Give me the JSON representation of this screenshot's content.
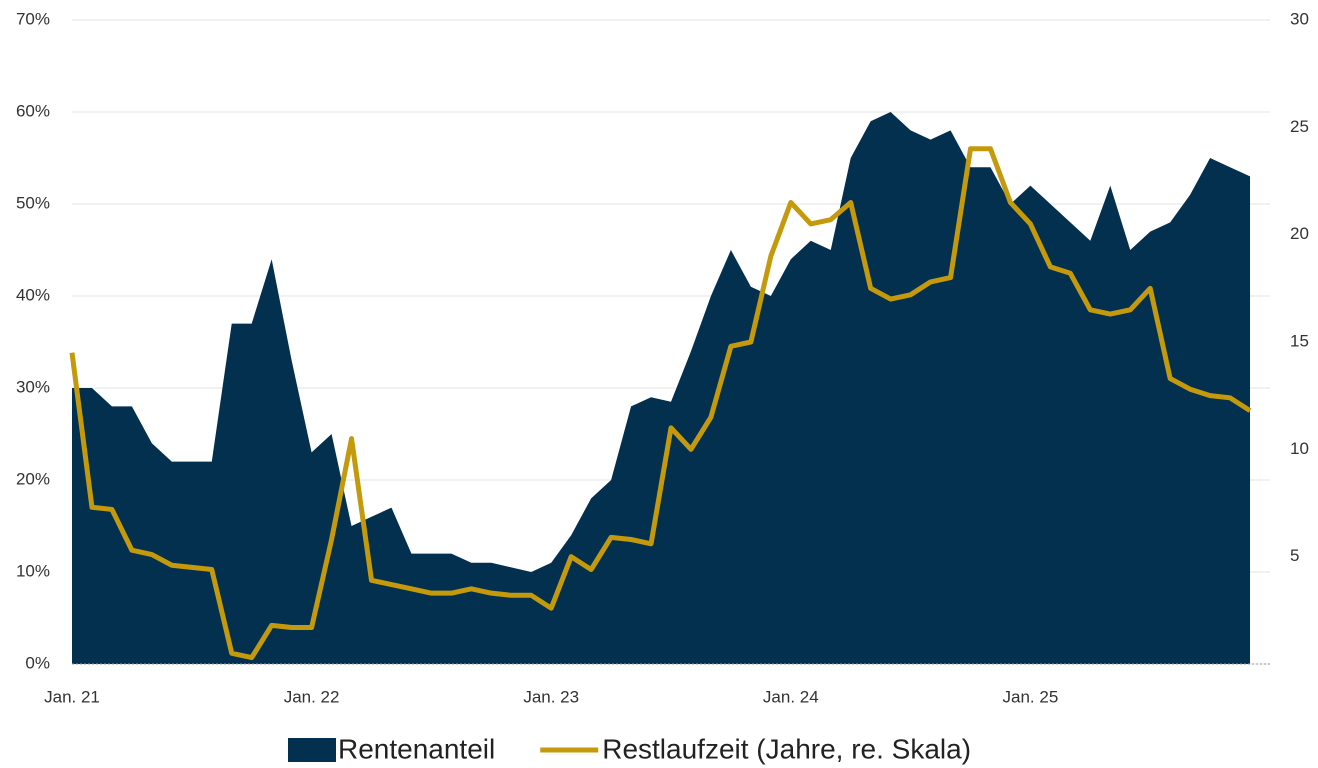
{
  "chart_data": {
    "type": "combo",
    "x": [
      "2021-01",
      "2021-02",
      "2021-03",
      "2021-04",
      "2021-05",
      "2021-06",
      "2021-07",
      "2021-08",
      "2021-09",
      "2021-10",
      "2021-11",
      "2021-12",
      "2022-01",
      "2022-02",
      "2022-03",
      "2022-04",
      "2022-05",
      "2022-06",
      "2022-07",
      "2022-08",
      "2022-09",
      "2022-10",
      "2022-11",
      "2022-12",
      "2023-01",
      "2023-02",
      "2023-03",
      "2023-04",
      "2023-05",
      "2023-06",
      "2023-07",
      "2023-08",
      "2023-09",
      "2023-10",
      "2023-11",
      "2023-12",
      "2024-01",
      "2024-02",
      "2024-03",
      "2024-04",
      "2024-05",
      "2024-06",
      "2024-07",
      "2024-08",
      "2024-09",
      "2024-10",
      "2024-11",
      "2024-12",
      "2025-01",
      "2025-02",
      "2025-03",
      "2025-04",
      "2025-05",
      "2025-06",
      "2025-07",
      "2025-08",
      "2025-09",
      "2025-10",
      "2025-11",
      "2025-12"
    ],
    "series": [
      {
        "name": "Rentenanteil",
        "type": "area",
        "color": "#03304f",
        "values": [
          30,
          30,
          28,
          28,
          24,
          22,
          22,
          22,
          37,
          37,
          44,
          33,
          23,
          25,
          15,
          16,
          17,
          12,
          12,
          12,
          11,
          11,
          10.5,
          10,
          11,
          14,
          18,
          20,
          28,
          29,
          28.5,
          34,
          40,
          45,
          41,
          40,
          44,
          46,
          45,
          55,
          59,
          60,
          58,
          57,
          58,
          54,
          54,
          50,
          52,
          50,
          48,
          46,
          52,
          45,
          47,
          48,
          51,
          55,
          54,
          53
        ]
      },
      {
        "name": "Restlaufzeit (Jahre, re. Skala)",
        "type": "line",
        "axis": "y2",
        "color": "#c49a0c",
        "values": [
          14.5,
          7.3,
          7.2,
          5.3,
          5.1,
          4.6,
          4.5,
          4.4,
          0.5,
          0.3,
          1.8,
          1.7,
          1.7,
          5.8,
          10.5,
          3.9,
          3.7,
          3.5,
          3.3,
          3.3,
          3.5,
          3.3,
          3.2,
          3.2,
          2.6,
          5,
          4.4,
          5.9,
          5.8,
          5.6,
          11,
          10,
          11.5,
          14.8,
          15,
          19,
          21.5,
          20.5,
          20.7,
          21.5,
          17.5,
          17,
          17.2,
          17.8,
          18,
          24,
          24,
          21.5,
          20.5,
          18.5,
          18.2,
          16.5,
          16.3,
          16.5,
          17.5,
          13.3,
          12.8,
          12.5,
          12.4,
          11.8
        ]
      }
    ],
    "xlim": [
      "2021-01",
      "2026-01"
    ],
    "xticks": [
      {
        "value": "2021-01",
        "label": "Jan. 21"
      },
      {
        "value": "2022-01",
        "label": "Jan. 22"
      },
      {
        "value": "2023-01",
        "label": "Jan. 23"
      },
      {
        "value": "2024-01",
        "label": "Jan. 24"
      },
      {
        "value": "2025-01",
        "label": "Jan. 25"
      }
    ],
    "ylim": [
      0,
      70
    ],
    "yticks": [
      {
        "value": 0,
        "label": "0%"
      },
      {
        "value": 10,
        "label": "10%"
      },
      {
        "value": 20,
        "label": "20%"
      },
      {
        "value": 30,
        "label": "30%"
      },
      {
        "value": 40,
        "label": "40%"
      },
      {
        "value": 50,
        "label": "50%"
      },
      {
        "value": 60,
        "label": "60%"
      },
      {
        "value": 70,
        "label": "70%"
      }
    ],
    "y2lim": [
      0,
      30
    ],
    "y2ticks": [
      5,
      10,
      15,
      20,
      25,
      30
    ],
    "grid": true
  }
}
